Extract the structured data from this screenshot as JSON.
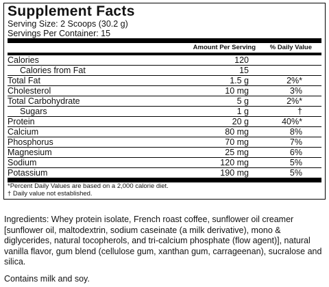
{
  "header": {
    "title": "Supplement Facts",
    "serving_size": "Serving Size: 2 Scoops (30.2 g)",
    "servings_per_container": "Servings Per Container: 15"
  },
  "table": {
    "columns": [
      "Amount Per Serving",
      "% Daily Value"
    ],
    "rows": [
      [
        "Calories",
        "120"
      ],
      [
        "Calories from Fat",
        "15"
      ],
      [
        "Total Fat",
        "1.5 g",
        "2%*"
      ],
      [
        "Cholesterol",
        "10 mg",
        "3%"
      ],
      [
        "Total Carbohydrate",
        "5 g",
        "2%*"
      ],
      [
        "Sugars",
        "1 g",
        "†"
      ],
      [
        "Protein",
        "20 g",
        "40%*"
      ],
      [
        "Calcium",
        "80 mg",
        "8%"
      ],
      [
        "Phosphorus",
        "70 mg",
        "7%"
      ],
      [
        "Magnesium",
        "25 mg",
        "6%"
      ],
      [
        "Sodium",
        "120 mg",
        "5%"
      ],
      [
        "Potassium",
        "190 mg",
        "5%"
      ]
    ]
  },
  "footnotes": [
    "*Percent Daily Values are based on a 2,000 calorie diet.",
    "† Daily value not established."
  ],
  "ingredients": "Ingredients: Whey protein isolate, French roast coffee, sunflower oil creamer [sunflower oil, maltodextrin, sodium caseinate (a milk derivative), mono & diglycerides, natural tocopherols, and tri-calcium phosphate (flow agent)], natural vanilla flavor, gum blend (cellulose gum, xanthan gum, carrageenan), sucralose and silica.",
  "allergens": "Contains milk and soy."
}
